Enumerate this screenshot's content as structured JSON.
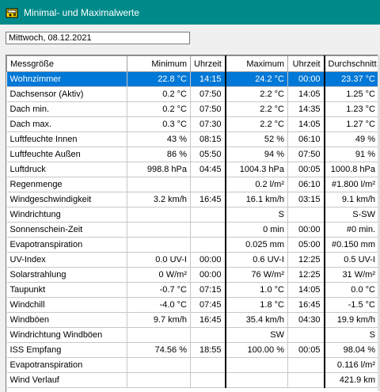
{
  "window": {
    "title": "Minimal- und Maximalwerte"
  },
  "date_field": {
    "value": "Mittwoch, 08.12.2021"
  },
  "columns": [
    "Messgröße",
    "Minimum",
    "Uhrzeit",
    "Maximum",
    "Uhrzeit",
    "Durchschnitt"
  ],
  "rows": [
    [
      "Wohnzimmer",
      "22.8 °C",
      "14:15",
      "24.2 °C",
      "00:00",
      "23.37 °C"
    ],
    [
      "Dachsensor (Aktiv)",
      "0.2 °C",
      "07:50",
      "2.2 °C",
      "14:05",
      "1.25 °C"
    ],
    [
      "Dach min.",
      "0.2 °C",
      "07:50",
      "2.2 °C",
      "14:35",
      "1.23 °C"
    ],
    [
      "Dach max.",
      "0.3 °C",
      "07:30",
      "2.2 °C",
      "14:05",
      "1.27 °C"
    ],
    [
      "Luftfeuchte Innen",
      "43 %",
      "08:15",
      "52 %",
      "06:10",
      "49 %"
    ],
    [
      "Luftfeuchte Außen",
      "86 %",
      "05:50",
      "94 %",
      "07:50",
      "91 %"
    ],
    [
      "Luftdruck",
      "998.8 hPa",
      "04:45",
      "1004.3 hPa",
      "00:05",
      "1000.8 hPa"
    ],
    [
      "Regenmenge",
      "",
      "",
      "0.2 l/m²",
      "06:10",
      "#1.800 l/m²"
    ],
    [
      "Windgeschwindigkeit",
      "3.2 km/h",
      "16:45",
      "16.1 km/h",
      "03:15",
      "9.1 km/h"
    ],
    [
      "Windrichtung",
      "",
      "",
      "S",
      "",
      "S-SW"
    ],
    [
      "Sonnenschein-Zeit",
      "",
      "",
      "0 min",
      "00:00",
      "#0 min."
    ],
    [
      "Evapotranspiration",
      "",
      "",
      "0.025 mm",
      "05:00",
      "#0.150 mm"
    ],
    [
      "UV-Index",
      "0.0 UV-I",
      "00:00",
      "0.6 UV-I",
      "12:25",
      "0.5 UV-I"
    ],
    [
      "Solarstrahlung",
      "0 W/m²",
      "00:00",
      "76 W/m²",
      "12:25",
      "31 W/m²"
    ],
    [
      "Taupunkt",
      "-0.7 °C",
      "07:15",
      "1.0 °C",
      "14:05",
      "0.0 °C"
    ],
    [
      "Windchill",
      "-4.0 °C",
      "07:45",
      "1.8 °C",
      "16:45",
      "-1.5 °C"
    ],
    [
      "Windböen",
      "9.7 km/h",
      "16:45",
      "35.4 km/h",
      "04:30",
      "19.9 km/h"
    ],
    [
      "Windrichtung Windböen",
      "",
      "",
      "SW",
      "",
      "S"
    ],
    [
      "ISS Empfang",
      "74.56 %",
      "18:55",
      "100.00 %",
      "00:05",
      "98.04 %"
    ],
    [
      "Evapotranspiration",
      "",
      "",
      "",
      "",
      "0.116 l/m²"
    ],
    [
      "Wind Verlauf",
      "",
      "",
      "",
      "",
      "421.9 km"
    ]
  ],
  "selected_row": 0
}
